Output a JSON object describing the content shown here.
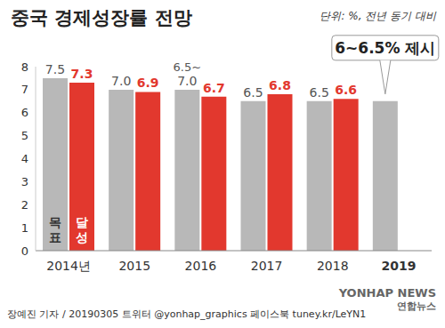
{
  "chart_data": {
    "type": "bar",
    "title": "중국 경제성장률 전망",
    "subtitle": "단위: %, 전년 동기 대비",
    "categories": [
      "2014년",
      "2015",
      "2016",
      "2017",
      "2018",
      "2019"
    ],
    "series": [
      {
        "name": "목표",
        "color": "#b8b8b8",
        "values": [
          7.5,
          7.0,
          7.0,
          6.5,
          6.5,
          6.5
        ],
        "value_labels": [
          "7.5",
          "7.0",
          "7.0",
          "6.5",
          "6.5",
          null
        ]
      },
      {
        "name": "달성",
        "color": "#e2382e",
        "values": [
          7.3,
          6.9,
          6.7,
          6.8,
          6.6,
          null
        ]
      }
    ],
    "ylim": [
      0,
      8
    ],
    "yticks": [
      0,
      1,
      2,
      3,
      4,
      5,
      6,
      7,
      8
    ],
    "grid": false,
    "data_labels": true,
    "annotations": [
      {
        "text": "6.5~",
        "category": "2016"
      },
      {
        "text": "6~6.5% 제시",
        "category": "2019"
      }
    ],
    "source": "장예진 기자 / 20190305 트위터 @yonhap_graphics 페이스북 tuney.kr/LeYN1",
    "credits": [
      "YONHAP NEWS",
      "연합뉴스"
    ]
  }
}
